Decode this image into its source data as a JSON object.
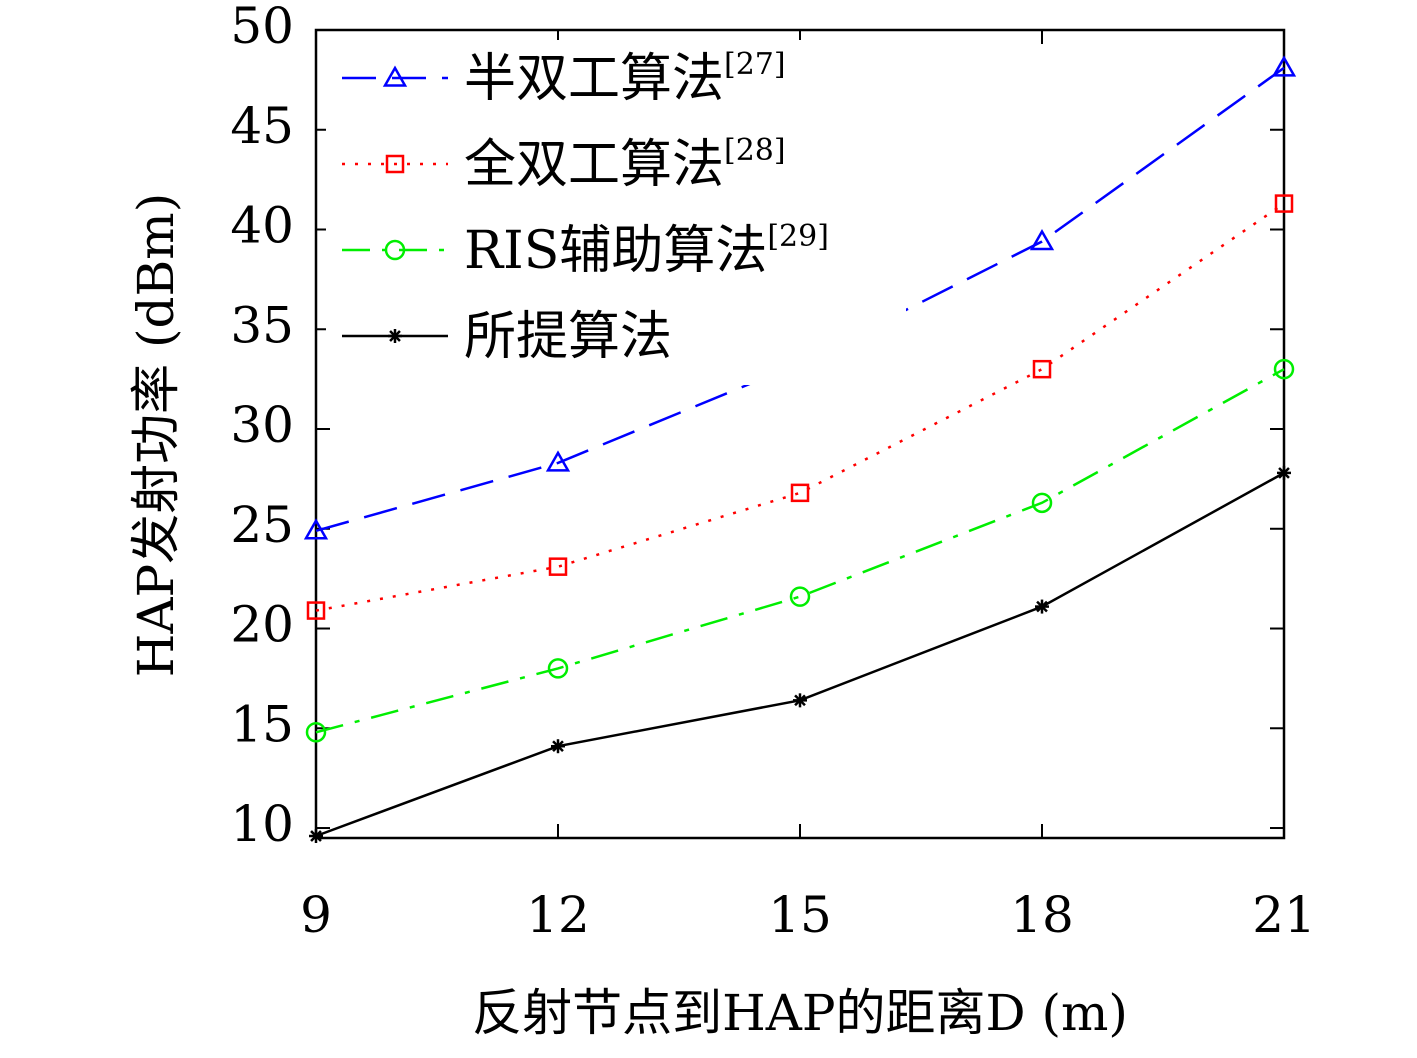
{
  "chart_data": {
    "type": "line",
    "title": "",
    "xlabel": "反射节点到HAP的距离D (m)",
    "ylabel": "HAP发射功率 (dBm)",
    "x": [
      9,
      12,
      15,
      18,
      21
    ],
    "xlim": [
      9,
      21
    ],
    "ylim": [
      9.5,
      50
    ],
    "xticks": [
      9,
      12,
      15,
      18,
      21
    ],
    "yticks": [
      10,
      15,
      20,
      25,
      30,
      35,
      40,
      45,
      50
    ],
    "grid": false,
    "legend_position": "top-left",
    "series": [
      {
        "name": "半双工算法",
        "ref": "[27]",
        "color": "#0000ff",
        "marker": "triangle",
        "linestyle": "dashed",
        "values": [
          24.9,
          28.3,
          33.3,
          39.4,
          48.1
        ]
      },
      {
        "name": "全双工算法",
        "ref": "[28]",
        "color": "#ff0000",
        "marker": "square",
        "linestyle": "dotted",
        "values": [
          20.9,
          23.1,
          26.8,
          33.0,
          41.3
        ]
      },
      {
        "name": "RIS辅助算法",
        "ref": "[29]",
        "color": "#00ee00",
        "marker": "circle",
        "linestyle": "dashdot",
        "values": [
          14.8,
          18.0,
          21.6,
          26.3,
          33.0
        ]
      },
      {
        "name": "所提算法",
        "ref": "",
        "color": "#000000",
        "marker": "asterisk",
        "linestyle": "solid",
        "values": [
          9.6,
          14.1,
          16.4,
          21.1,
          27.8
        ]
      }
    ]
  }
}
